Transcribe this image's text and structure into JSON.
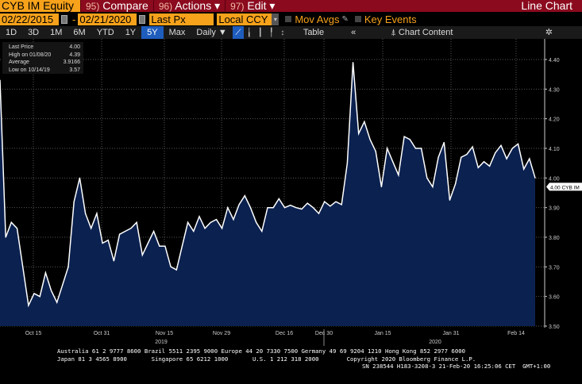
{
  "header": {
    "ticker": "CYB IM Equity",
    "compare_num": "95)",
    "compare": "Compare",
    "actions_num": "96)",
    "actions": "Actions ▾",
    "edit_num": "97)",
    "edit": "Edit ▾",
    "chart_type": "Line Chart"
  },
  "controls": {
    "start_date": "02/22/2015",
    "dash": "-",
    "end_date": "02/21/2020",
    "field": "Last Px",
    "currency": "Local CCY",
    "mov_avgs": "Mov Avgs",
    "key_events": "Key Events"
  },
  "toolbar": {
    "periods": [
      "1D",
      "3D",
      "1M",
      "6M",
      "YTD",
      "1Y",
      "5Y",
      "Max"
    ],
    "active": "5Y",
    "frequency": "Daily ▼",
    "table": "Table",
    "collapse": "«",
    "chart_content": "Chart Content"
  },
  "legend": {
    "last_label": "Last Price",
    "last_value": "4.00",
    "high_label": "High on 01/08/20",
    "high_value": "4.39",
    "avg_label": "Average",
    "avg_value": "3.9166",
    "low_label": "Low on 10/14/19",
    "low_value": "3.57"
  },
  "chart_data": {
    "type": "area",
    "series": [
      {
        "name": "CYB IM Equity",
        "color": "#ffffff",
        "fill": "#0b2150",
        "values": [
          4.33,
          3.8,
          3.85,
          3.83,
          3.7,
          3.57,
          3.61,
          3.6,
          3.68,
          3.62,
          3.58,
          3.64,
          3.7,
          3.92,
          4.0,
          3.88,
          3.83,
          3.88,
          3.78,
          3.79,
          3.72,
          3.81,
          3.82,
          3.83,
          3.85,
          3.74,
          3.78,
          3.82,
          3.77,
          3.77,
          3.7,
          3.69,
          3.77,
          3.85,
          3.82,
          3.87,
          3.83,
          3.85,
          3.86,
          3.83,
          3.9,
          3.86,
          3.91,
          3.94,
          3.9,
          3.85,
          3.82,
          3.9,
          3.9,
          3.93,
          3.9,
          3.908,
          3.9,
          3.895,
          3.915,
          3.9,
          3.88,
          3.92,
          3.905,
          3.92,
          3.91,
          4.05,
          4.39,
          4.15,
          4.19,
          4.13,
          4.09,
          3.97,
          4.1,
          4.055,
          4.01,
          4.14,
          4.13,
          4.1,
          4.1,
          4.0,
          3.97,
          4.07,
          4.12,
          3.925,
          3.98,
          4.07,
          4.08,
          4.105,
          4.035,
          4.055,
          4.04,
          4.085,
          4.11,
          4.065,
          4.1,
          4.115,
          4.03,
          4.065,
          4.0
        ]
      }
    ],
    "ylim": [
      3.5,
      4.4
    ],
    "yticks": [
      "4.40",
      "4.30",
      "4.20",
      "4.10",
      "4.00",
      "3.90",
      "3.80",
      "3.70",
      "3.60",
      "3.50"
    ],
    "xticks": [
      "Oct 15",
      "Oct 31",
      "Nov 15",
      "Nov 29",
      "Dec 16",
      "Dec 30",
      "Jan 15",
      "Jan 31",
      "Feb 14"
    ],
    "years": [
      "2019",
      "2020"
    ],
    "last_tag": "4.00 CYB IM",
    "grid": true
  },
  "footer": {
    "line1": "Australia 61 2 9777 8600 Brazil 5511 2395 9000 Europe 44 20 7330 7500 Germany 49 69 9204 1210 Hong Kong 852 2977 6000",
    "line2": "Japan 81 3 4565 8900       Singapore 65 6212 1000       U.S. 1 212 318 2000        Copyright 2020 Bloomberg Finance L.P.",
    "line3": "SN 238544 H183-3208-3 21-Feb-20 16:25:06 CET  GMT+1:00"
  }
}
